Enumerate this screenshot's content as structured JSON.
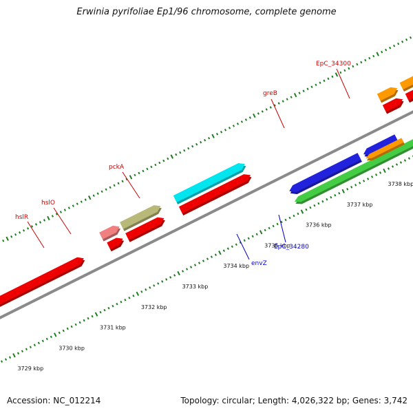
{
  "title": "Erwinia pyrifoliae Ep1/96 chromosome, complete genome",
  "footer": {
    "accession": "Accession: NC_012214",
    "summary": "Topology: circular; Length: 4,026,322 bp; Genes: 3,742"
  },
  "colors": {
    "backbone": "#8a8a8a",
    "tick": "#1e7b1e",
    "label_top": "#cc0000",
    "label_bottom": "#0000cc"
  },
  "ticks": [
    {
      "pos": 3729,
      "label": "3729 kbp"
    },
    {
      "pos": 3730,
      "label": "3730 kbp"
    },
    {
      "pos": 3731,
      "label": "3731 kbp"
    },
    {
      "pos": 3732,
      "label": "3732 kbp"
    },
    {
      "pos": 3733,
      "label": "3733 kbp"
    },
    {
      "pos": 3734,
      "label": "3734 kbp"
    },
    {
      "pos": 3735,
      "label": "3735 kbp"
    },
    {
      "pos": 3736,
      "label": "3736 kbp"
    },
    {
      "pos": 3737,
      "label": "3737 kbp"
    },
    {
      "pos": 3738,
      "label": "3738 kbp"
    }
  ],
  "features": [
    {
      "track": "cds_fwd",
      "start": 3726.5,
      "end": 3731.3,
      "color": "#ee0000",
      "strand": "+"
    },
    {
      "track": "cds_fwd",
      "start": 3731.9,
      "end": 3732.25,
      "color": "#ee0000",
      "strand": "+"
    },
    {
      "track": "cds_fwd",
      "start": 3732.35,
      "end": 3733.25,
      "color": "#ee0000",
      "strand": "+"
    },
    {
      "track": "cds_fwd",
      "start": 3733.65,
      "end": 3735.35,
      "color": "#ee0000",
      "strand": "+"
    },
    {
      "track": "cds_fwd",
      "start": 3738.6,
      "end": 3739.05,
      "color": "#ee0000",
      "strand": "+"
    },
    {
      "track": "cds_fwd",
      "start": 3739.15,
      "end": 3741.6,
      "color": "#ee0000",
      "strand": "+"
    },
    {
      "track": "gene_fwd",
      "start": 3731.85,
      "end": 3732.3,
      "color": "#f08080",
      "strand": "+",
      "name": "hslR"
    },
    {
      "track": "gene_fwd",
      "start": 3732.35,
      "end": 3733.3,
      "color": "#b8b878",
      "strand": "+",
      "name": "hslO"
    },
    {
      "track": "gene_fwd",
      "start": 3733.65,
      "end": 3735.35,
      "color": "#00e5ee",
      "strand": "+",
      "name": "pckA"
    },
    {
      "track": "gene_fwd",
      "start": 3738.6,
      "end": 3739.05,
      "color": "#ff9900",
      "strand": "+",
      "name": "greB"
    },
    {
      "track": "gene_fwd",
      "start": 3739.15,
      "end": 3741.6,
      "color": "#ff9900",
      "strand": "+",
      "name": "EpC_34300"
    },
    {
      "track": "cds_rev",
      "start": 3735.95,
      "end": 3737.65,
      "color": "#2222dd",
      "strand": "-"
    },
    {
      "track": "cds_rev",
      "start": 3737.75,
      "end": 3738.55,
      "color": "#2222dd",
      "strand": "-"
    },
    {
      "track": "gene_rev",
      "start": 3735.95,
      "end": 3739.05,
      "color": "#44cc44",
      "strand": "-",
      "name": "envZ"
    },
    {
      "track": "gene_rev2",
      "start": 3737.75,
      "end": 3738.65,
      "color": "#ff9900",
      "strand": "-",
      "name": "EpC_34280"
    }
  ],
  "labels": [
    {
      "text": "hslR",
      "side": "top"
    },
    {
      "text": "hslO",
      "side": "top"
    },
    {
      "text": "pckA",
      "side": "top"
    },
    {
      "text": "greB",
      "side": "top"
    },
    {
      "text": "EpC_34300",
      "side": "top"
    },
    {
      "text": "envZ",
      "side": "bottom"
    },
    {
      "text": "EpC_34280",
      "side": "bottom"
    }
  ]
}
